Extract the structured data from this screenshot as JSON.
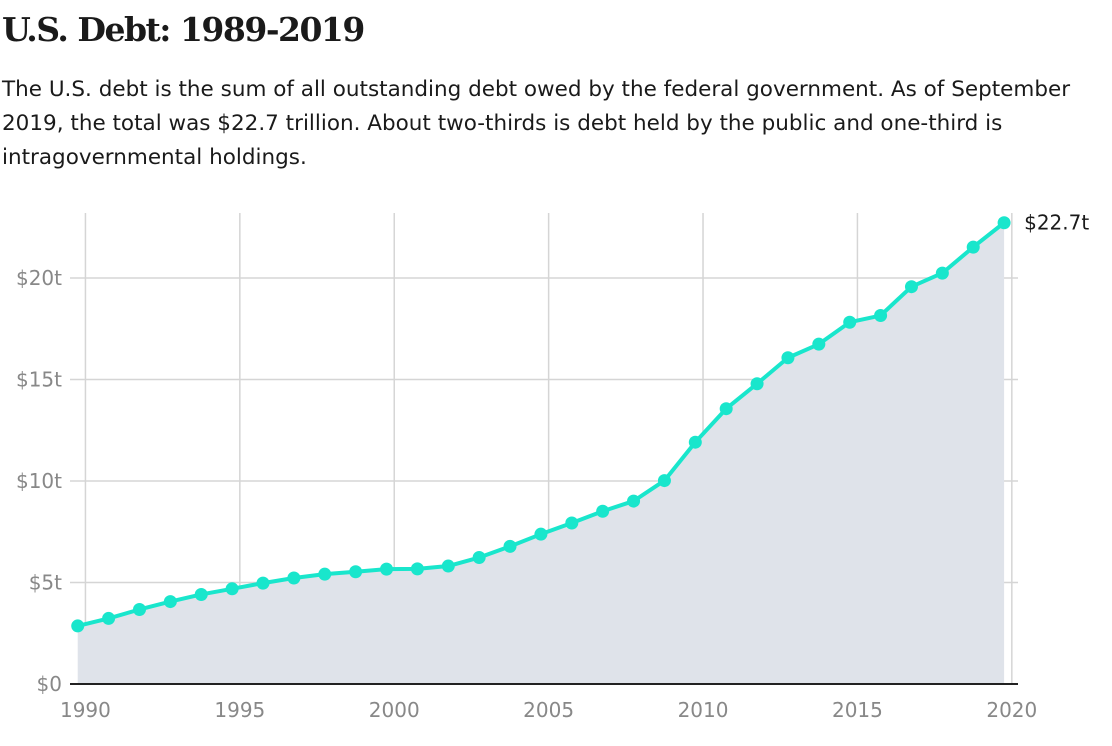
{
  "chart_data": {
    "type": "area",
    "title": "U.S. Debt: 1989-2019",
    "subtitle": "The U.S. debt is the sum of all outstanding debt owed by the federal government. As of September 2019, the total was $22.7 trillion. About two-thirds is debt held by the public and one-third is intragovernmental holdings.",
    "xlabel": "",
    "ylabel": "",
    "x": [
      1989.75,
      1990.75,
      1991.75,
      1992.75,
      1993.75,
      1994.75,
      1995.75,
      1996.75,
      1997.75,
      1998.75,
      1999.75,
      2000.75,
      2001.75,
      2002.75,
      2003.75,
      2004.75,
      2005.75,
      2006.75,
      2007.75,
      2008.75,
      2009.75,
      2010.75,
      2011.75,
      2012.75,
      2013.75,
      2014.75,
      2015.75,
      2016.75,
      2017.75,
      2018.75,
      2019.75
    ],
    "series": [
      {
        "values": [
          2.86,
          3.23,
          3.67,
          4.06,
          4.41,
          4.69,
          4.97,
          5.22,
          5.41,
          5.53,
          5.66,
          5.67,
          5.81,
          6.23,
          6.78,
          7.38,
          7.93,
          8.51,
          9.01,
          10.02,
          11.91,
          13.56,
          14.79,
          16.07,
          16.74,
          17.82,
          18.15,
          19.57,
          20.24,
          21.52,
          22.72
        ]
      }
    ],
    "xlim": [
      1989.5,
      2020.2
    ],
    "ylim": [
      0,
      23.2
    ],
    "x_ticks": [
      1990,
      1995,
      2000,
      2005,
      2010,
      2015,
      2020
    ],
    "x_tick_labels": [
      "1990",
      "1995",
      "2000",
      "2005",
      "2010",
      "2015",
      "2020"
    ],
    "y_ticks": [
      0,
      5,
      10,
      15,
      20
    ],
    "y_tick_labels": [
      "$0",
      "$5t",
      "$10t",
      "$15t",
      "$20t"
    ],
    "end_label": "$22.7t",
    "grid": true,
    "legend": "none",
    "colors": {
      "line": "#19e6cc",
      "area": "#dfe3ea",
      "grid": "#d5d5d5",
      "axis": "#222222",
      "tick_text": "#888888"
    }
  }
}
